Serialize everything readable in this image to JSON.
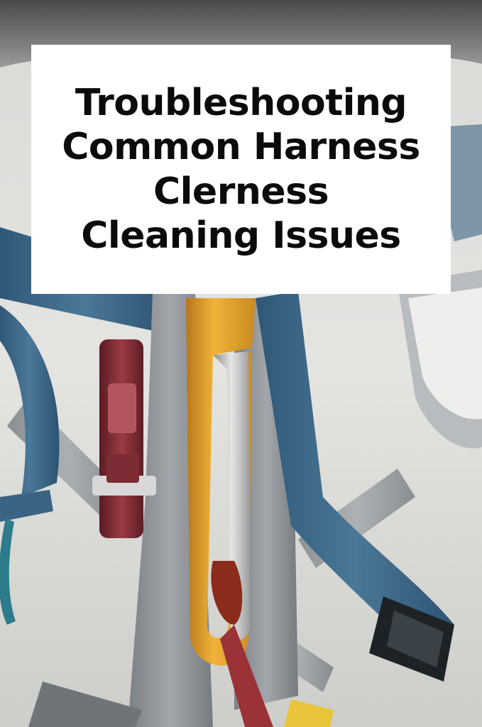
{
  "title": {
    "lines": [
      "Troubleshooting",
      "Common Harness",
      "Clerness",
      "Cleaning Issues"
    ]
  },
  "colors": {
    "card_background": "#ffffff",
    "title_text": "#0b0b0b",
    "webbing_blue": "#3f6a8a",
    "webbing_gray": "#8e9296",
    "carabiner_gold": "#e0a127",
    "buckle_red": "#7b2a33"
  }
}
